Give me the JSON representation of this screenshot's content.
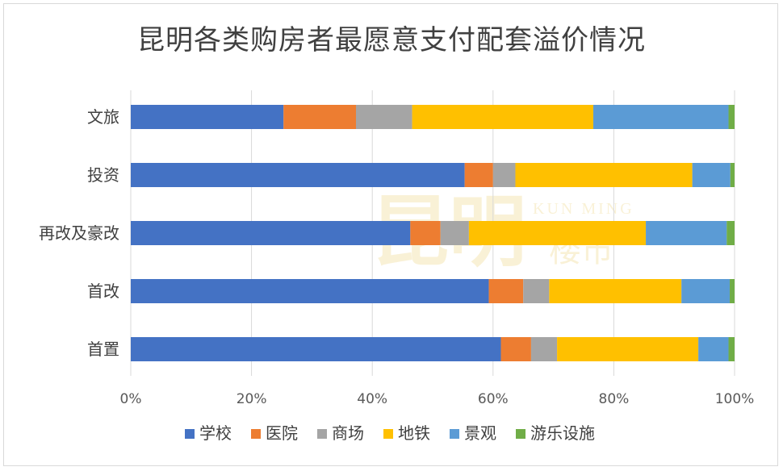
{
  "title": "昆明各类购房者最愿意支付配套溢价情况",
  "watermark": {
    "cn": "昆明",
    "en": "KUN MING",
    "sub": "楼市"
  },
  "colors": {
    "学校": "#4472c4",
    "医院": "#ed7d31",
    "商场": "#a5a5a5",
    "地铁": "#ffc000",
    "景观": "#5b9bd5",
    "游乐设施": "#70ad47"
  },
  "chart_data": {
    "type": "bar",
    "orientation": "horizontal",
    "stacked": "percent",
    "title": "昆明各类购房者最愿意支付配套溢价情况",
    "categories": [
      "文旅",
      "投资",
      "再改及豪改",
      "首改",
      "首置"
    ],
    "series": [
      {
        "name": "学校",
        "values": [
          25.3,
          55.3,
          46.3,
          59.3,
          61.3
        ]
      },
      {
        "name": "医院",
        "values": [
          12.0,
          4.7,
          5.0,
          5.7,
          5.0
        ]
      },
      {
        "name": "商场",
        "values": [
          9.3,
          3.7,
          4.7,
          4.3,
          4.3
        ]
      },
      {
        "name": "地铁",
        "values": [
          30.0,
          29.3,
          29.3,
          21.9,
          23.4
        ]
      },
      {
        "name": "景观",
        "values": [
          22.4,
          6.3,
          13.4,
          8.0,
          5.0
        ]
      },
      {
        "name": "游乐设施",
        "values": [
          1.0,
          0.7,
          1.3,
          0.8,
          1.0
        ]
      }
    ],
    "x_ticks": [
      "0%",
      "20%",
      "40%",
      "60%",
      "80%",
      "100%"
    ],
    "xlim": [
      0,
      100
    ],
    "grid": true,
    "legend_position": "bottom"
  }
}
